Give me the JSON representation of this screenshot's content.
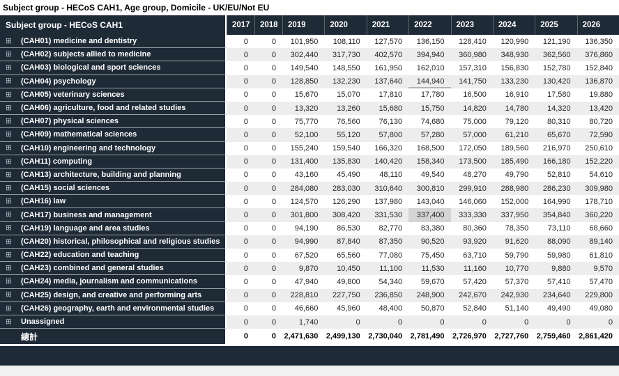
{
  "title": "Subject group - HECoS CAH1, Age group, Domicile - UK/EU/Not EU",
  "icons": {
    "expand_icon_glyph": "⊞"
  },
  "colors": {
    "header_bg": "#1f2a37",
    "row_header_bg": "#1f2a37",
    "row_stripe": "#ededed",
    "selected_cell_bg": "#d4d4d4",
    "focused_cell_underline": "#b3b3b3",
    "body_text": "#252423",
    "header_text": "#ffffff",
    "footer_bar_bg": "#1f2a37",
    "page_footer_bg": "#f2f2f2"
  },
  "table": {
    "corner_header": "Subject group - HECoS CAH1",
    "columns": [
      "2017",
      "2018",
      "2019",
      "2020",
      "2021",
      "2022",
      "2023",
      "2024",
      "2025",
      "2026"
    ],
    "rows": [
      {
        "label": "(CAH01) medicine and dentistry",
        "values": [
          "0",
          "0",
          "101,950",
          "108,110",
          "127,570",
          "136,150",
          "128,410",
          "120,990",
          "121,190",
          "136,350"
        ]
      },
      {
        "label": "(CAH02) subjects allied to medicine",
        "values": [
          "0",
          "0",
          "302,440",
          "317,730",
          "402,570",
          "394,940",
          "360,980",
          "348,930",
          "362,560",
          "376,860"
        ]
      },
      {
        "label": "(CAH03) biological and sport sciences",
        "values": [
          "0",
          "0",
          "149,540",
          "148,550",
          "161,950",
          "162,010",
          "157,310",
          "156,830",
          "152,780",
          "152,840"
        ]
      },
      {
        "label": "(CAH04) psychology",
        "values": [
          "0",
          "0",
          "128,850",
          "132,230",
          "137,640",
          "144,940",
          "141,750",
          "133,230",
          "130,420",
          "136,870"
        ]
      },
      {
        "label": "(CAH05) veterinary sciences",
        "values": [
          "0",
          "0",
          "15,670",
          "15,070",
          "17,810",
          "17,780",
          "16,500",
          "16,910",
          "17,580",
          "19,880"
        ]
      },
      {
        "label": "(CAH06) agriculture, food and related studies",
        "values": [
          "0",
          "0",
          "13,320",
          "13,260",
          "15,680",
          "15,750",
          "14,820",
          "14,780",
          "14,320",
          "13,420"
        ]
      },
      {
        "label": "(CAH07) physical sciences",
        "values": [
          "0",
          "0",
          "75,770",
          "76,560",
          "76,130",
          "74,680",
          "75,000",
          "79,120",
          "80,310",
          "80,720"
        ]
      },
      {
        "label": "(CAH09) mathematical sciences",
        "values": [
          "0",
          "0",
          "52,100",
          "55,120",
          "57,800",
          "57,280",
          "57,000",
          "61,210",
          "65,670",
          "72,590"
        ]
      },
      {
        "label": "(CAH10) engineering and technology",
        "values": [
          "0",
          "0",
          "155,240",
          "159,540",
          "166,320",
          "168,500",
          "172,050",
          "189,560",
          "216,970",
          "250,610"
        ]
      },
      {
        "label": "(CAH11) computing",
        "values": [
          "0",
          "0",
          "131,400",
          "135,830",
          "140,420",
          "158,340",
          "173,500",
          "185,490",
          "166,180",
          "152,220"
        ]
      },
      {
        "label": "(CAH13) architecture, building and planning",
        "values": [
          "0",
          "0",
          "43,160",
          "45,490",
          "48,110",
          "49,540",
          "48,270",
          "49,790",
          "52,810",
          "54,610"
        ]
      },
      {
        "label": "(CAH15) social sciences",
        "values": [
          "0",
          "0",
          "284,080",
          "283,030",
          "310,640",
          "300,810",
          "299,910",
          "288,980",
          "286,230",
          "309,980"
        ]
      },
      {
        "label": "(CAH16) law",
        "values": [
          "0",
          "0",
          "124,570",
          "126,290",
          "137,980",
          "143,040",
          "146,060",
          "152,000",
          "164,990",
          "178,710"
        ]
      },
      {
        "label": "(CAH17) business and management",
        "values": [
          "0",
          "0",
          "301,800",
          "308,420",
          "331,530",
          "337,400",
          "333,330",
          "337,950",
          "354,840",
          "360,220"
        ]
      },
      {
        "label": "(CAH19) language and area studies",
        "values": [
          "0",
          "0",
          "94,190",
          "86,530",
          "82,770",
          "83,380",
          "80,360",
          "78,350",
          "73,110",
          "68,660"
        ]
      },
      {
        "label": "(CAH20) historical, philosophical and religious studies",
        "values": [
          "0",
          "0",
          "94,990",
          "87,840",
          "87,350",
          "90,520",
          "93,920",
          "91,620",
          "88,090",
          "89,140"
        ]
      },
      {
        "label": "(CAH22) education and teaching",
        "values": [
          "0",
          "0",
          "67,520",
          "65,560",
          "77,080",
          "75,450",
          "63,710",
          "59,790",
          "59,980",
          "61,810"
        ]
      },
      {
        "label": "(CAH23) combined and general studies",
        "values": [
          "0",
          "0",
          "9,870",
          "10,450",
          "11,100",
          "11,530",
          "11,160",
          "10,770",
          "9,880",
          "9,570"
        ]
      },
      {
        "label": "(CAH24) media, journalism and communications",
        "values": [
          "0",
          "0",
          "47,940",
          "49,800",
          "54,340",
          "59,670",
          "57,420",
          "57,370",
          "57,410",
          "57,470"
        ]
      },
      {
        "label": "(CAH25) design, and creative and performing arts",
        "values": [
          "0",
          "0",
          "228,810",
          "227,750",
          "236,850",
          "248,900",
          "242,670",
          "242,930",
          "234,640",
          "229,800"
        ]
      },
      {
        "label": "(CAH26) geography, earth and environmental studies",
        "values": [
          "0",
          "0",
          "46,660",
          "45,960",
          "48,400",
          "50,870",
          "52,840",
          "51,140",
          "49,490",
          "49,080"
        ]
      },
      {
        "label": "Unassigned",
        "values": [
          "0",
          "0",
          "1,740",
          "0",
          "0",
          "0",
          "0",
          "0",
          "0",
          "0"
        ]
      }
    ],
    "total_row": {
      "label": "總計",
      "values": [
        "0",
        "0",
        "2,471,630",
        "2,499,130",
        "2,730,040",
        "2,781,490",
        "2,726,970",
        "2,727,760",
        "2,759,460",
        "2,861,420"
      ]
    },
    "selected_cell": {
      "row_index": 13,
      "col_index": 5,
      "value": "337,400"
    },
    "focused_cell": {
      "row_index": 3,
      "col_index": 5,
      "value": "144,940"
    }
  }
}
